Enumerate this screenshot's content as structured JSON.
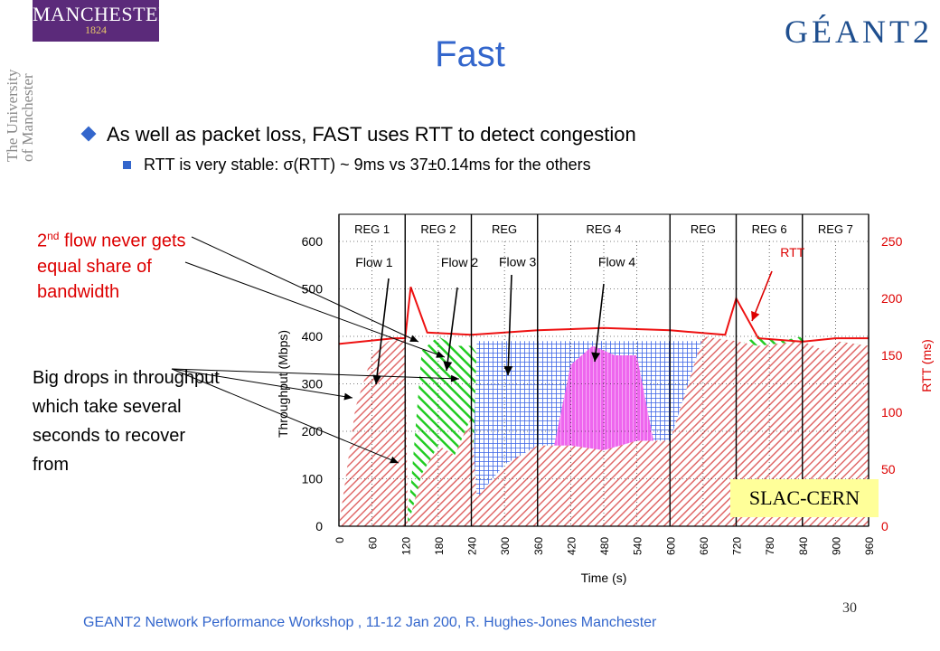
{
  "logos": {
    "manchester_name": "MANCHESTER",
    "manchester_year": "1824",
    "university_line1": "The University",
    "university_line2": "of Manchester",
    "geant": "GÉANT2"
  },
  "slide": {
    "title": "Fast",
    "bullet1": "As well as packet loss, FAST uses RTT to detect congestion",
    "bullet2": "RTT is very stable: σ(RTT) ~ 9ms vs 37±0.14ms for the others",
    "annotation1_pre": "2",
    "annotation1_sup": "nd",
    "annotation1_post": " flow never gets equal share of bandwidth",
    "annotation2": "Big drops in throughput which take several seconds to recover from",
    "footer": "GEANT2 Network Performance Workshop , 11-12 Jan 200,  R. Hughes-Jones  Manchester",
    "page_number": "30"
  },
  "chart_data": {
    "type": "area",
    "xlabel": "Time (s)",
    "ylabel_left": "Throughput (Mbps)",
    "ylabel_right": "RTT (ms)",
    "xlim": [
      0,
      960
    ],
    "ylim_left": [
      0,
      600
    ],
    "ylim_right": [
      0,
      250
    ],
    "x_ticks": [
      "0",
      "60",
      "120",
      "180",
      "240",
      "300",
      "360",
      "420",
      "480",
      "540",
      "600",
      "660",
      "720",
      "780",
      "840",
      "900",
      "960"
    ],
    "y_ticks_left": [
      "0",
      "100",
      "200",
      "300",
      "400",
      "500",
      "600"
    ],
    "y_ticks_right": [
      "0",
      "50",
      "100",
      "150",
      "200",
      "250"
    ],
    "grid": true,
    "regions": [
      "REG 1",
      "REG 2",
      "REG",
      "REG 4",
      "REG",
      "REG 6",
      "REG 7"
    ],
    "region_boundaries": [
      0,
      120,
      240,
      360,
      600,
      720,
      840,
      960
    ],
    "annotations": [
      "Flow 1",
      "Flow 2",
      "Flow 3",
      "Flow 4",
      "RTT"
    ],
    "box_label": "SLAC-CERN",
    "colors": {
      "flow1": "#e06a6a",
      "flow2": "#22cc22",
      "flow3": "#3b64e6",
      "flow4": "#ee66ee",
      "rtt": "#ee1111",
      "right_axis": "#dd0000"
    },
    "series": [
      {
        "name": "Flow 1",
        "x": [
          0,
          30,
          60,
          90,
          120,
          125,
          150,
          180,
          210,
          240,
          250,
          300,
          360,
          420,
          480,
          540,
          600,
          660,
          720,
          760,
          840,
          880,
          900,
          960
        ],
        "values": [
          0,
          250,
          360,
          390,
          400,
          0,
          110,
          170,
          150,
          230,
          60,
          130,
          170,
          170,
          160,
          180,
          180,
          400,
          390,
          380,
          390,
          370,
          390,
          380
        ]
      },
      {
        "name": "Flow 2",
        "x": [
          120,
          130,
          150,
          180,
          210,
          240,
          360,
          600,
          720,
          760,
          800,
          840,
          880,
          900,
          960
        ],
        "values": [
          0,
          80,
          370,
          400,
          380,
          380,
          190,
          170,
          380,
          400,
          390,
          400,
          300,
          390,
          380
        ]
      },
      {
        "name": "Flow 3",
        "x": [
          240,
          250,
          300,
          360,
          420,
          480,
          540,
          600,
          660,
          720
        ],
        "values": [
          0,
          390,
          390,
          390,
          390,
          390,
          390,
          390,
          390,
          0
        ]
      },
      {
        "name": "Flow 4",
        "x": [
          360,
          420,
          460,
          500,
          540,
          600
        ],
        "values": [
          0,
          340,
          380,
          360,
          360,
          0
        ]
      },
      {
        "name": "RTT",
        "x": [
          0,
          60,
          100,
          120,
          130,
          160,
          240,
          360,
          480,
          600,
          700,
          720,
          760,
          840,
          900,
          960
        ],
        "values": [
          160,
          163,
          165,
          165,
          210,
          170,
          168,
          172,
          174,
          172,
          168,
          200,
          165,
          162,
          165,
          165
        ]
      }
    ]
  }
}
